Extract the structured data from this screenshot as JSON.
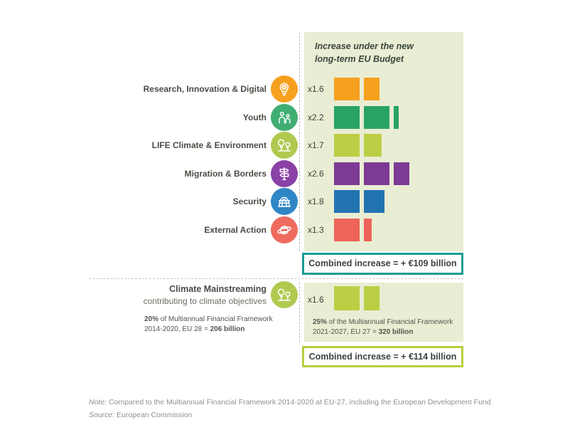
{
  "header": {
    "title_line1": "Increase under the new",
    "title_line2": "long-term EU Budget"
  },
  "chart_data": {
    "type": "bar",
    "title": "Increase under the new long-term EU Budget",
    "note": "pictogram bars: each full square = 1.0x of previous budget",
    "series": [
      {
        "label": "Research, Innovation & Digital",
        "multiplier": 1.6,
        "multiplier_label": "x1.6",
        "color": "#f6a01f",
        "icon_color": "#f6a01f",
        "icon": "lightbulb-gear-icon"
      },
      {
        "label": "Youth",
        "multiplier": 2.2,
        "multiplier_label": "x2.2",
        "color": "#29a364",
        "icon_color": "#40ae72",
        "icon": "youth-icon"
      },
      {
        "label": "LIFE Climate & Environment",
        "multiplier": 1.7,
        "multiplier_label": "x1.7",
        "color": "#bcce44",
        "icon_color": "#b0ca50",
        "icon": "trees-icon"
      },
      {
        "label": "Migration & Borders",
        "multiplier": 2.6,
        "multiplier_label": "x2.6",
        "color": "#7c3b94",
        "icon_color": "#8a42a6",
        "icon": "signpost-icon"
      },
      {
        "label": "Security",
        "multiplier": 1.8,
        "multiplier_label": "x1.8",
        "color": "#2273b2",
        "icon_color": "#2e86c5",
        "icon": "dome-icon"
      },
      {
        "label": "External Action",
        "multiplier": 1.3,
        "multiplier_label": "x1.3",
        "color": "#ee6459",
        "icon_color": "#ef6b60",
        "icon": "globe-orbit-icon"
      }
    ],
    "combined_main": {
      "label": "Combined increase = + €109 billion",
      "border_color": "#199c95"
    },
    "climate": {
      "title": "Climate Mainstreaming",
      "subtitle": "contributing to climate objectives",
      "icon": "trees-icon",
      "icon_color": "#b0ca50",
      "multiplier": 1.6,
      "multiplier_label": "x1.6",
      "color": "#bcce44",
      "left_note_line1": [
        {
          "t": "20%",
          "b": true
        },
        {
          "t": " of Multiannual Financial Framework"
        }
      ],
      "left_note_line2": [
        {
          "t": "2014-2020, EU 28 = "
        },
        {
          "t": "206 billion",
          "b": true
        }
      ],
      "right_note_line1": [
        {
          "t": "25%",
          "b": true
        },
        {
          "t": " of the Multiannual Financial Framework"
        }
      ],
      "right_note_line2": [
        {
          "t": "2021-2027, EU 27 = "
        },
        {
          "t": "320 billion",
          "b": true
        }
      ],
      "combined": {
        "label": "Combined increase = + €114 billion",
        "border_color": "#b8ce3f"
      }
    }
  },
  "footer": {
    "note_segments": [
      {
        "t": "Note:",
        "i": true
      },
      {
        "t": " Compared to the Multiannual Financial Framework 2014-2020 at EU-27, including the European Development Fund"
      }
    ],
    "source_segments": [
      {
        "t": "Source:",
        "i": true
      },
      {
        "t": " European Commission"
      }
    ]
  },
  "colors": {
    "panel_bg": "#e9edd3",
    "teal_border": "#199c95",
    "green_border": "#b8ce3f",
    "title_text": "#3b463e",
    "label_text": "#4e4a44",
    "footnote_text": "#91908a"
  }
}
